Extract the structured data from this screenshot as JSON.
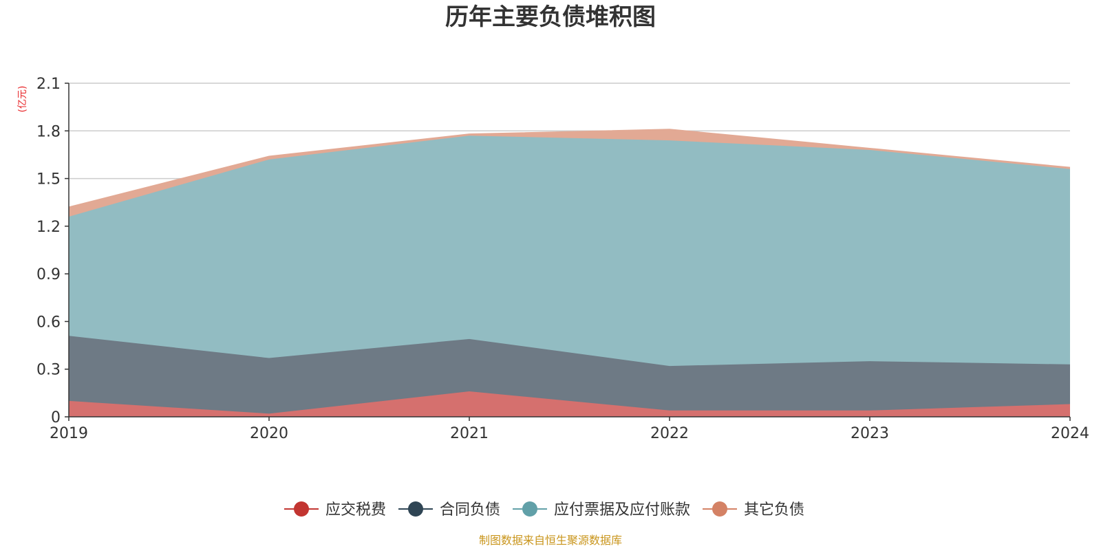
{
  "chart_data": {
    "type": "area",
    "stacked": true,
    "title": "历年主要负债堆积图",
    "unit_label": "(亿元)",
    "x": [
      "2019",
      "2020",
      "2021",
      "2022",
      "2023",
      "2024"
    ],
    "ylim": [
      0,
      2.1
    ],
    "yticks": [
      "0",
      "0.3",
      "0.6",
      "0.9",
      "1.2",
      "1.5",
      "1.8",
      "2.1"
    ],
    "grid": true,
    "legend_position": "bottom",
    "series": [
      {
        "name": "应交税费",
        "color": "#c23531",
        "fill": "#d5706e",
        "values": [
          0.1,
          0.02,
          0.16,
          0.04,
          0.04,
          0.08
        ]
      },
      {
        "name": "合同负债",
        "color": "#2f4554",
        "fill": "#6e7a85",
        "values": [
          0.41,
          0.35,
          0.33,
          0.28,
          0.31,
          0.25
        ]
      },
      {
        "name": "应付票据及应付账款",
        "color": "#61a0a8",
        "fill": "#92bcc2",
        "values": [
          0.75,
          1.25,
          1.28,
          1.42,
          1.33,
          1.23
        ]
      },
      {
        "name": "其它负债",
        "color": "#d48265",
        "fill": "#e2a994",
        "values": [
          0.06,
          0.02,
          0.01,
          0.07,
          0.01,
          0.01
        ]
      }
    ],
    "source": "制图数据来自恒生聚源数据库"
  }
}
